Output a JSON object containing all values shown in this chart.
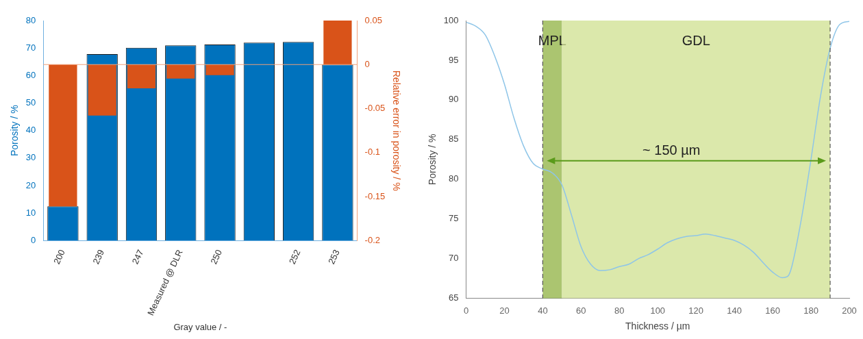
{
  "chart_data": [
    {
      "type": "bar",
      "xlabel": "Gray value / -",
      "ylabel": "Porosity / %",
      "y2label": "Relative error in porosity / %",
      "categories": [
        "200",
        "239",
        "247",
        "Measured @ DLR",
        "250",
        null,
        "252",
        "253"
      ],
      "series": [
        {
          "color": "#0072bd",
          "values": [
            12.5,
            67.8,
            70.1,
            71,
            71.3,
            72,
            72.2,
            64
          ]
        },
        {
          "color": "#d95319",
          "axis": "y2",
          "values": [
            -0.161,
            -0.058,
            -0.027,
            -0.016,
            -0.012,
            0,
            0,
            0.05
          ]
        }
      ],
      "ylim": [
        0,
        80
      ],
      "yticks": [
        0,
        10,
        20,
        30,
        40,
        50,
        60,
        70,
        80
      ],
      "y2lim": [
        -0.2,
        0.05
      ],
      "y2ticks": [
        -0.2,
        -0.15,
        -0.1,
        -0.05,
        0,
        0.05
      ],
      "ref_lines": [
        {
          "axis": "y2",
          "value": 0,
          "color": "#f0a07a"
        }
      ],
      "grid": false,
      "legend": false
    },
    {
      "type": "line",
      "xlabel": "Thickness / µm",
      "ylabel": "Porosity / %",
      "x": [
        0,
        5,
        10,
        15,
        20,
        25,
        30,
        35,
        40,
        45,
        50,
        55,
        60,
        65,
        70,
        75,
        80,
        85,
        90,
        95,
        100,
        105,
        110,
        115,
        120,
        125,
        130,
        135,
        140,
        145,
        150,
        155,
        160,
        165,
        168,
        170,
        175,
        180,
        185,
        190,
        195,
        200
      ],
      "series": [
        {
          "color": "#8ec5e8",
          "values": [
            99.8,
            99.3,
            98.2,
            95.5,
            92,
            87.7,
            84.2,
            82,
            81.3,
            80.8,
            79.3,
            75.5,
            71.5,
            69.3,
            68.5,
            68.6,
            69,
            69.3,
            70,
            70.5,
            71.2,
            72,
            72.5,
            72.8,
            72.9,
            73.1,
            72.9,
            72.6,
            72.3,
            71.7,
            70.8,
            69.5,
            68.3,
            67.6,
            67.8,
            69,
            75,
            82.5,
            90.5,
            96.5,
            99.5,
            99.9
          ]
        }
      ],
      "xlim": [
        0,
        200
      ],
      "xticks": [
        0,
        20,
        40,
        60,
        80,
        100,
        120,
        140,
        160,
        180,
        200
      ],
      "ylim": [
        65,
        100
      ],
      "yticks": [
        65,
        70,
        75,
        80,
        85,
        90,
        95,
        100
      ],
      "bands": [
        {
          "axis": "x",
          "from": 40,
          "to": 50,
          "label": "MPL",
          "color": "#8fb240"
        },
        {
          "axis": "x",
          "from": 50,
          "to": 190,
          "label": "GDL",
          "color": "#cfe08f"
        }
      ],
      "ref_lines": [
        {
          "axis": "x",
          "value": 40,
          "color": "#555555",
          "line_style": "dashed"
        },
        {
          "axis": "x",
          "value": 190,
          "color": "#555555",
          "line_style": "dashed"
        }
      ],
      "annotations": [
        "~ 150 µm"
      ],
      "marker": "none",
      "line_style": "solid",
      "grid": false,
      "legend": false
    }
  ]
}
